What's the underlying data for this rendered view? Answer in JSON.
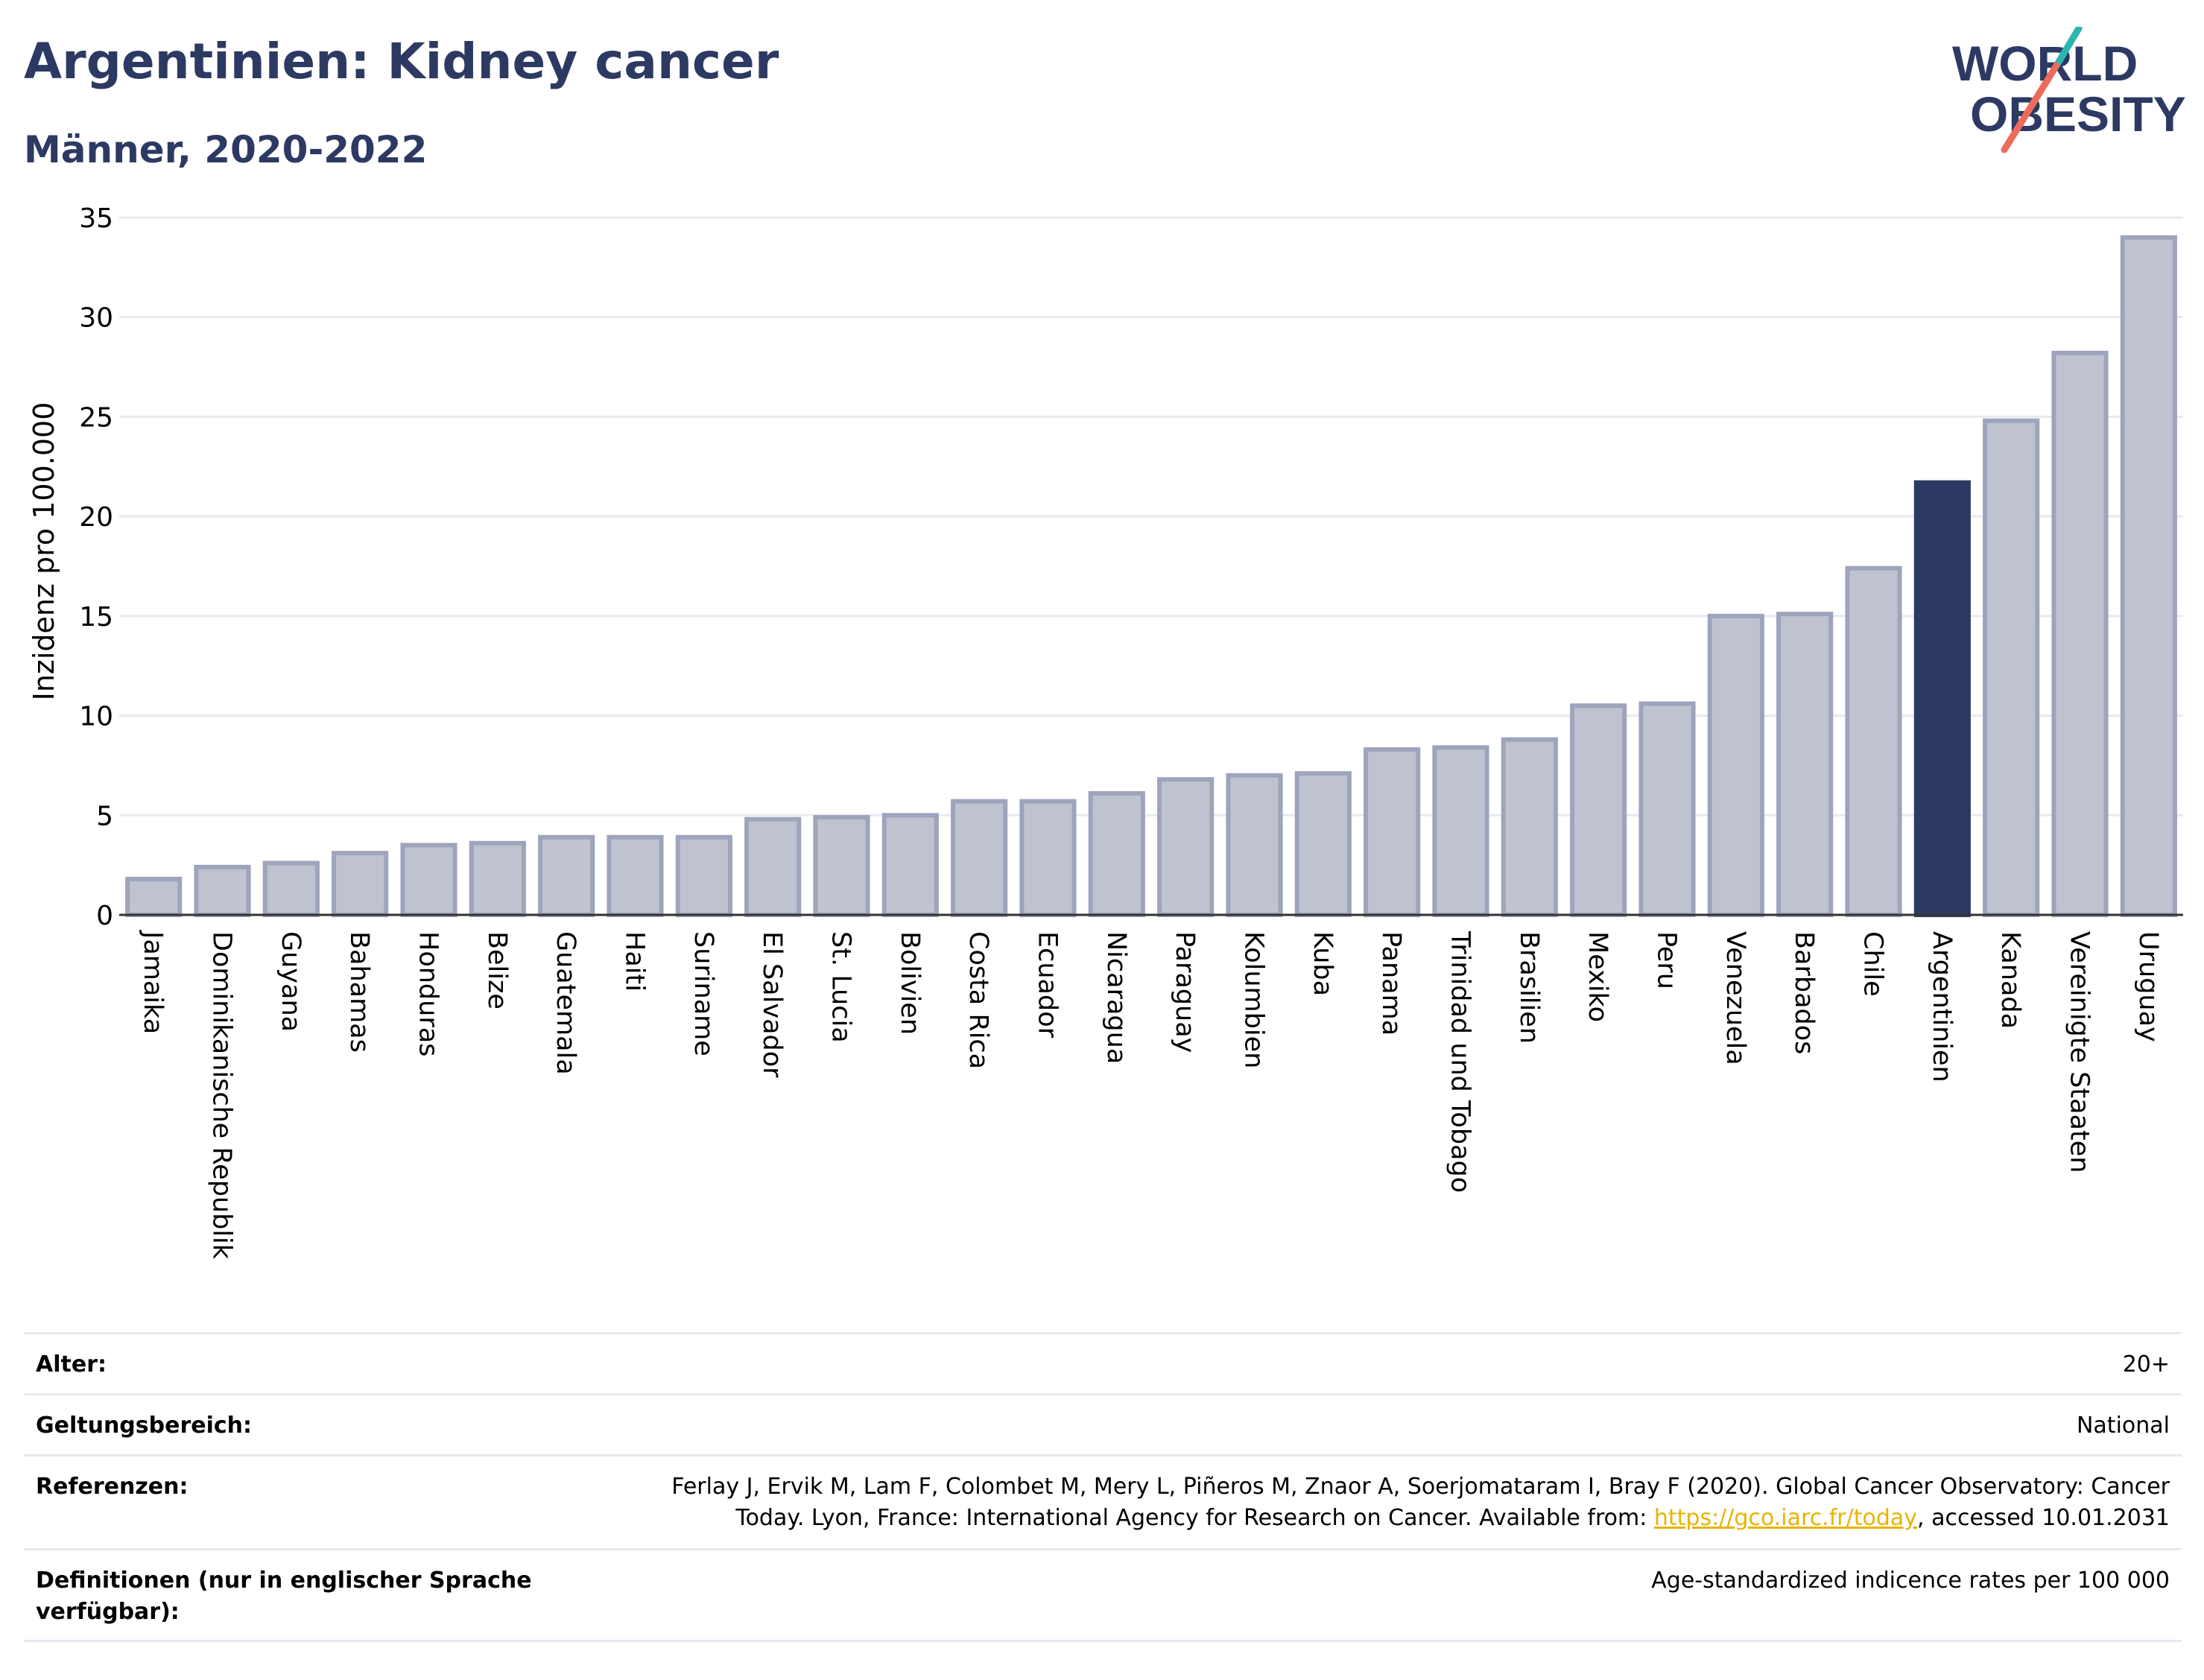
{
  "header": {
    "title": "Argentinien: Kidney cancer",
    "subtitle": "Männer, 2020-2022"
  },
  "logo": {
    "line1": "WORLD",
    "line2": "OBESITY"
  },
  "chart_data": {
    "type": "bar",
    "ylabel": "Inzidenz pro 100.000",
    "xlabel": "",
    "ylim": [
      0,
      35
    ],
    "yticks": [
      0,
      5,
      10,
      15,
      20,
      25,
      30,
      35
    ],
    "grid": true,
    "highlight": "Argentinien",
    "colors": {
      "bar": "#bfc3d0",
      "bar_edge": "#9ea4bb",
      "highlight": "#2c3a63",
      "grid": "#e8eaf0"
    },
    "categories": [
      "Jamaika",
      "Dominikanische Republik",
      "Guyana",
      "Bahamas",
      "Honduras",
      "Belize",
      "Guatemala",
      "Haiti",
      "Suriname",
      "El Salvador",
      "St. Lucia",
      "Bolivien",
      "Costa Rica",
      "Ecuador",
      "Nicaragua",
      "Paraguay",
      "Kolumbien",
      "Kuba",
      "Panama",
      "Trinidad und Tobago",
      "Brasilien",
      "Mexiko",
      "Peru",
      "Venezuela",
      "Barbados",
      "Chile",
      "Argentinien",
      "Kanada",
      "Vereinigte Staaten",
      "Uruguay"
    ],
    "values": [
      1.8,
      2.4,
      2.6,
      3.1,
      3.5,
      3.6,
      3.9,
      3.9,
      3.9,
      4.8,
      4.9,
      5.0,
      5.7,
      5.7,
      6.1,
      6.8,
      7.0,
      7.1,
      8.3,
      8.4,
      8.8,
      10.5,
      10.6,
      15.0,
      15.1,
      17.4,
      21.7,
      24.8,
      28.2,
      34.0
    ]
  },
  "info": {
    "age_label": "Alter:",
    "age_value": "20+",
    "scope_label": "Geltungsbereich:",
    "scope_value": "National",
    "refs_label": "Referenzen:",
    "refs_line1": "Ferlay J, Ervik M, Lam F, Colombet M, Mery L, Piñeros M, Znaor A, Soerjomataram I, Bray F (2020). Global Cancer Observatory: Cancer",
    "refs_line2_pre": "Today. Lyon, France: International Agency for Research on Cancer. Available from: ",
    "refs_link": "https://gco.iarc.fr/today",
    "refs_line2_post": ", accessed 10.01.2031",
    "defs_label": "Definitionen (nur in englischer Sprache verfügbar):",
    "defs_value": "Age-standardized indicence rates per 100 000"
  }
}
